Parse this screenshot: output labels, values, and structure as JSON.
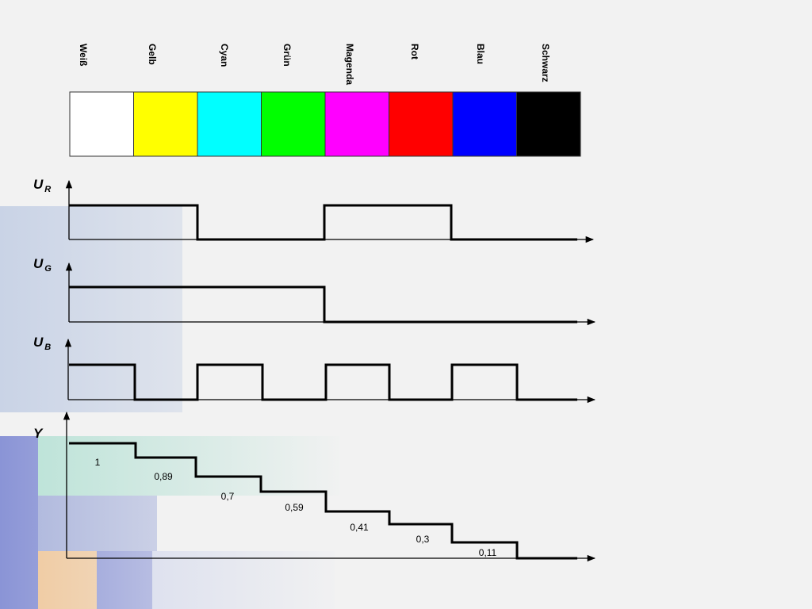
{
  "colors": [
    "Weiß",
    "Gelb",
    "Cyan",
    "Grün",
    "Magenda",
    "Rot",
    "Blau",
    "Schwarz"
  ],
  "signals": [
    {
      "symbol": "U",
      "sub": "R"
    },
    {
      "symbol": "U",
      "sub": "G"
    },
    {
      "symbol": "U",
      "sub": "B"
    },
    {
      "symbol": "Y"
    }
  ],
  "y_levels": [
    "1",
    "0,89",
    "0,7",
    "0,59",
    "0,41",
    "0,3",
    "0,11"
  ]
}
